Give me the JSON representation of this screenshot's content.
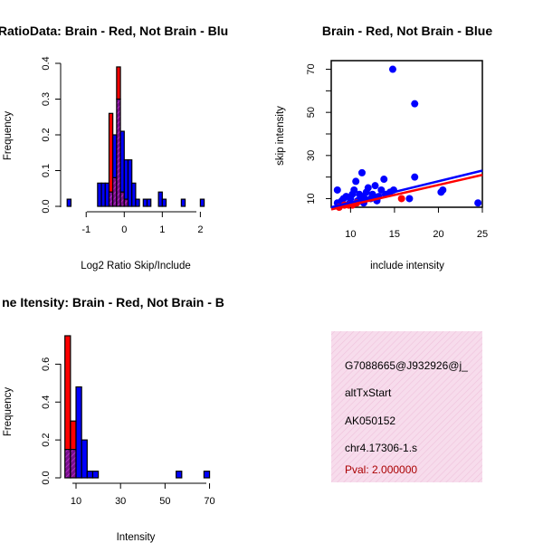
{
  "colors": {
    "red": "#ff0000",
    "blue": "#0000ff",
    "purple": "#8a1a9a",
    "panel": "#f5d6ea",
    "pval": "#aa0000"
  },
  "chart_data": [
    {
      "type": "bar",
      "title": "RatioData: Brain - Red, Not Brain - Blu",
      "xlabel": "Log2 Ratio Skip/Include",
      "ylabel": "Frequency",
      "xlim": [
        -1.6,
        2.3
      ],
      "ylim": [
        0,
        0.4
      ],
      "xticks": [
        "-1",
        "0",
        "1",
        "2"
      ],
      "yticks": [
        "0.0",
        "0.1",
        "0.2",
        "0.3",
        "0.4"
      ],
      "bin_width": 0.1,
      "red": {
        "bins": [
          -0.4,
          -0.3,
          -0.2,
          -0.1,
          0.0
        ],
        "values": [
          0.26,
          0.08,
          0.39,
          0.04,
          0.02
        ]
      },
      "blue": {
        "bins": [
          -1.5,
          -0.7,
          -0.6,
          -0.5,
          -0.4,
          -0.3,
          -0.2,
          -0.1,
          0.0,
          0.1,
          0.2,
          0.3,
          0.5,
          0.6,
          0.9,
          1.0,
          1.5,
          2.0
        ],
        "values": [
          0.02,
          0.065,
          0.065,
          0.065,
          0.04,
          0.2,
          0.3,
          0.21,
          0.13,
          0.13,
          0.065,
          0.02,
          0.02,
          0.02,
          0.04,
          0.02,
          0.02,
          0.02
        ]
      }
    },
    {
      "type": "scatter",
      "title": "Brain - Red, Not Brain - Blue",
      "xlabel": "include intensity",
      "ylabel": "skip intensity",
      "xlim": [
        7.8,
        25
      ],
      "ylim": [
        6,
        74
      ],
      "xticks": [
        "10",
        "15",
        "20",
        "25"
      ],
      "yticks": [
        "10",
        "30",
        "50",
        "70"
      ],
      "blue_points": [
        [
          14.8,
          70
        ],
        [
          17.3,
          54
        ],
        [
          17.3,
          20
        ],
        [
          11.3,
          22
        ],
        [
          24.5,
          8
        ],
        [
          20.5,
          14
        ],
        [
          20.3,
          13
        ],
        [
          8.5,
          8
        ],
        [
          8.5,
          14
        ],
        [
          9.2,
          10
        ],
        [
          9.5,
          11
        ],
        [
          9.9,
          8
        ],
        [
          10.2,
          12
        ],
        [
          10.4,
          14
        ],
        [
          10.6,
          18
        ],
        [
          10.8,
          9
        ],
        [
          11.0,
          12
        ],
        [
          11.3,
          11
        ],
        [
          11.5,
          8
        ],
        [
          11.8,
          13
        ],
        [
          12.0,
          15
        ],
        [
          12.3,
          10
        ],
        [
          12.5,
          12
        ],
        [
          12.8,
          16
        ],
        [
          13.0,
          9
        ],
        [
          13.2,
          11
        ],
        [
          13.5,
          14
        ],
        [
          13.8,
          19
        ],
        [
          14.0,
          12
        ],
        [
          14.5,
          13
        ],
        [
          14.9,
          14
        ],
        [
          16.7,
          10
        ],
        [
          10.0,
          10
        ],
        [
          9.0,
          9
        ],
        [
          11.6,
          10
        ],
        [
          12.6,
          11
        ]
      ],
      "red_points": [
        [
          8.7,
          6
        ],
        [
          9.3,
          7
        ],
        [
          9.8,
          7
        ],
        [
          10.2,
          7
        ],
        [
          10.7,
          8
        ],
        [
          15.8,
          10
        ]
      ],
      "blue_fit": [
        [
          7.8,
          6
        ],
        [
          25,
          23
        ]
      ],
      "red_fit": [
        [
          7.8,
          5
        ],
        [
          25,
          21
        ]
      ]
    },
    {
      "type": "bar",
      "title": "ne Itensity: Brain - Red, Not Brain - B",
      "xlabel": "Intensity",
      "ylabel": "Frequency",
      "xlim": [
        4.3,
        71
      ],
      "ylim": [
        0,
        0.75
      ],
      "xticks": [
        "10",
        "30",
        "50",
        "70"
      ],
      "yticks": [
        "0.0",
        "0.2",
        "0.4",
        "0.6"
      ],
      "bin_width": 2.5,
      "red": {
        "bins": [
          5,
          7.5
        ],
        "values": [
          0.75,
          0.3
        ]
      },
      "blue": {
        "bins": [
          5,
          7.5,
          10,
          12.5,
          15,
          17.5,
          55,
          67.5
        ],
        "values": [
          0.15,
          0.15,
          0.48,
          0.2,
          0.035,
          0.035,
          0.035,
          0.035
        ]
      }
    }
  ],
  "info": {
    "lines": [
      "G7088665@J932926@j_",
      "altTxStart",
      "AK050152",
      "chr4.17306-1.s"
    ],
    "pval": "Pval: 2.000000"
  }
}
